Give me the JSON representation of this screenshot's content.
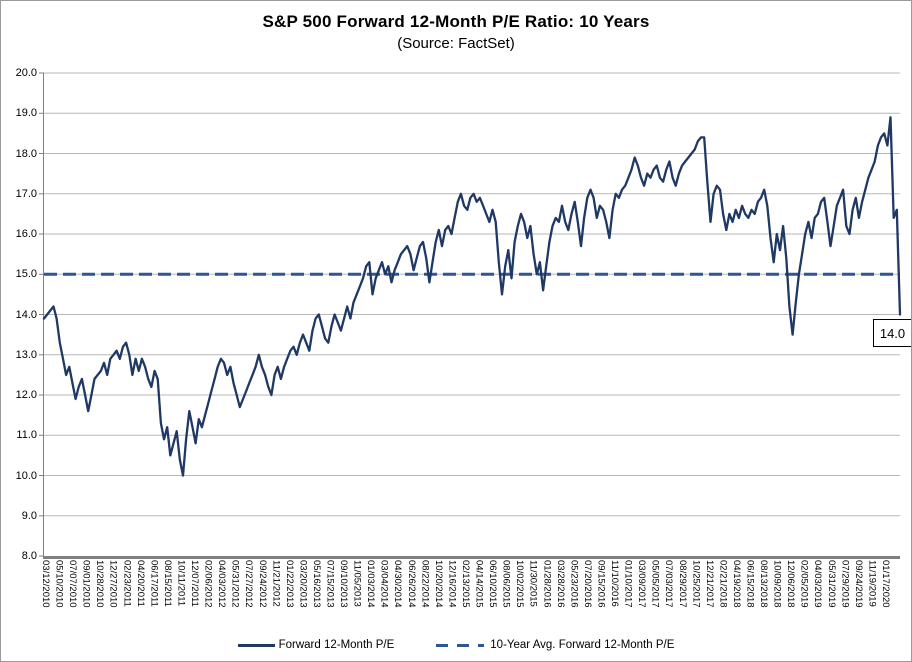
{
  "colors": {
    "series_line": "#1f3864",
    "average_line": "#2f5597",
    "gridline": "#b7b7b7",
    "axis": "#808080",
    "text": "#000000",
    "background": "#ffffff"
  },
  "annotation_box": {
    "text": "14.0"
  },
  "chart_data": {
    "type": "line",
    "title": "S&P 500 Forward 12-Month P/E Ratio: 10 Years",
    "subtitle": "(Source: FactSet)",
    "ylabel": "",
    "xlabel": "",
    "ylim": [
      8,
      20
    ],
    "y_tick_step": 1.0,
    "grid": true,
    "legend_position": "bottom",
    "y_tick_labels": [
      "8.0",
      "9.0",
      "10.0",
      "11.0",
      "12.0",
      "13.0",
      "14.0",
      "15.0",
      "16.0",
      "17.0",
      "18.0",
      "19.0",
      "20.0"
    ],
    "x_tick_labels": [
      "03/12/2010",
      "05/10/2010",
      "07/07/2010",
      "09/01/2010",
      "10/28/2010",
      "12/27/2010",
      "02/23/2011",
      "04/20/2011",
      "06/17/2011",
      "08/15/2011",
      "10/11/2011",
      "12/07/2011",
      "02/06/2012",
      "04/03/2012",
      "05/31/2012",
      "07/27/2012",
      "09/24/2012",
      "11/21/2012",
      "01/22/2013",
      "03/20/2013",
      "05/16/2013",
      "07/15/2013",
      "09/10/2013",
      "11/05/2013",
      "01/03/2014",
      "03/04/2014",
      "04/30/2014",
      "06/26/2014",
      "08/22/2014",
      "10/20/2014",
      "12/16/2014",
      "02/13/2015",
      "04/14/2015",
      "06/10/2015",
      "08/06/2015",
      "10/02/2015",
      "11/30/2015",
      "01/28/2016",
      "03/28/2016",
      "05/23/2016",
      "07/20/2016",
      "09/15/2016",
      "11/10/2016",
      "01/10/2017",
      "03/09/2017",
      "05/05/2017",
      "07/03/2017",
      "08/29/2017",
      "10/25/2017",
      "12/21/2017",
      "02/21/2018",
      "04/19/2018",
      "06/15/2018",
      "08/13/2018",
      "10/09/2018",
      "12/06/2018",
      "02/05/2019",
      "04/03/2019",
      "05/31/2019",
      "07/29/2019",
      "09/24/2019",
      "11/19/2019",
      "01/17/2020"
    ],
    "average_line": {
      "name": "10-Year Avg. Forward 12-Month P/E",
      "value": 15.0,
      "style": "dashed"
    },
    "end_annotation": {
      "text": "14.0",
      "value": 14.0
    },
    "series": [
      {
        "name": "Forward 12-Month P/E",
        "style": "solid",
        "cadence": "approx. every 2 weeks, 03/12/2010 to 03/12/2020",
        "values": [
          13.9,
          14.0,
          14.1,
          14.2,
          13.9,
          13.3,
          12.9,
          12.5,
          12.7,
          12.3,
          11.9,
          12.2,
          12.4,
          12.0,
          11.6,
          12.0,
          12.4,
          12.5,
          12.6,
          12.8,
          12.5,
          12.9,
          13.0,
          13.1,
          12.9,
          13.2,
          13.3,
          13.0,
          12.5,
          12.9,
          12.6,
          12.9,
          12.7,
          12.4,
          12.2,
          12.6,
          12.4,
          11.3,
          10.9,
          11.2,
          10.5,
          10.8,
          11.1,
          10.4,
          10.0,
          10.9,
          11.6,
          11.2,
          10.8,
          11.4,
          11.2,
          11.5,
          11.8,
          12.1,
          12.4,
          12.7,
          12.9,
          12.8,
          12.5,
          12.7,
          12.3,
          12.0,
          11.7,
          11.9,
          12.1,
          12.3,
          12.5,
          12.7,
          13.0,
          12.7,
          12.5,
          12.2,
          12.0,
          12.5,
          12.7,
          12.4,
          12.7,
          12.9,
          13.1,
          13.2,
          13.0,
          13.3,
          13.5,
          13.3,
          13.1,
          13.6,
          13.9,
          14.0,
          13.7,
          13.4,
          13.3,
          13.7,
          14.0,
          13.8,
          13.6,
          13.9,
          14.2,
          13.9,
          14.3,
          14.5,
          14.7,
          14.9,
          15.2,
          15.3,
          14.5,
          14.9,
          15.1,
          15.3,
          15.0,
          15.2,
          14.8,
          15.1,
          15.3,
          15.5,
          15.6,
          15.7,
          15.5,
          15.1,
          15.4,
          15.7,
          15.8,
          15.4,
          14.8,
          15.3,
          15.8,
          16.1,
          15.7,
          16.1,
          16.2,
          16.0,
          16.4,
          16.8,
          17.0,
          16.7,
          16.6,
          16.9,
          17.0,
          16.8,
          16.9,
          16.7,
          16.5,
          16.3,
          16.6,
          16.3,
          15.3,
          14.5,
          15.2,
          15.6,
          14.9,
          15.8,
          16.2,
          16.5,
          16.3,
          15.9,
          16.2,
          15.5,
          15.0,
          15.3,
          14.6,
          15.2,
          15.8,
          16.2,
          16.4,
          16.3,
          16.7,
          16.3,
          16.1,
          16.5,
          16.8,
          16.3,
          15.7,
          16.4,
          16.9,
          17.1,
          16.9,
          16.4,
          16.7,
          16.6,
          16.3,
          15.9,
          16.6,
          17.0,
          16.9,
          17.1,
          17.2,
          17.4,
          17.6,
          17.9,
          17.7,
          17.4,
          17.2,
          17.5,
          17.4,
          17.6,
          17.7,
          17.4,
          17.3,
          17.6,
          17.8,
          17.4,
          17.2,
          17.5,
          17.7,
          17.8,
          17.9,
          18.0,
          18.1,
          18.3,
          18.4,
          18.4,
          17.3,
          16.3,
          17.0,
          17.2,
          17.1,
          16.5,
          16.1,
          16.5,
          16.3,
          16.6,
          16.4,
          16.7,
          16.5,
          16.4,
          16.6,
          16.5,
          16.8,
          16.9,
          17.1,
          16.7,
          15.9,
          15.3,
          16.0,
          15.6,
          16.2,
          15.4,
          14.2,
          13.5,
          14.3,
          15.0,
          15.5,
          16.0,
          16.3,
          15.9,
          16.4,
          16.5,
          16.8,
          16.9,
          16.3,
          15.7,
          16.2,
          16.7,
          16.9,
          17.1,
          16.2,
          16.0,
          16.6,
          16.9,
          16.4,
          16.8,
          17.1,
          17.4,
          17.6,
          17.8,
          18.2,
          18.4,
          18.5,
          18.2,
          18.9,
          16.4,
          16.6,
          14.0
        ]
      }
    ]
  }
}
